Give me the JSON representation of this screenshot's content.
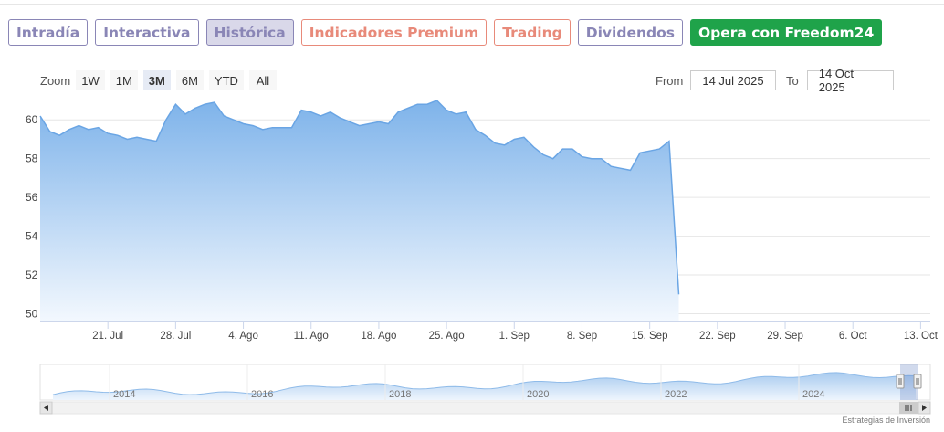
{
  "tabs": [
    {
      "label": "Intradía",
      "style": "purple"
    },
    {
      "label": "Interactiva",
      "style": "purple"
    },
    {
      "label": "Histórica",
      "style": "purple active"
    },
    {
      "label": "Indicadores Premium",
      "style": "salmon"
    },
    {
      "label": "Trading",
      "style": "salmon"
    },
    {
      "label": "Dividendos",
      "style": "purple"
    },
    {
      "label": "Opera con Freedom24",
      "style": "cta"
    }
  ],
  "zoom": {
    "label": "Zoom",
    "buttons": [
      "1W",
      "1M",
      "3M",
      "6M",
      "YTD",
      "All"
    ],
    "selected": "3M"
  },
  "range": {
    "from_label": "From",
    "from_value": "14 Jul 2025",
    "to_label": "To",
    "to_value": "14 Oct 2025"
  },
  "chart_data": {
    "type": "area",
    "ylim": [
      49.6,
      61.0
    ],
    "yticks": [
      50,
      52,
      54,
      56,
      58,
      60
    ],
    "x_start": "2025-07-14",
    "x_end": "2025-10-14",
    "xticks": [
      {
        "date": "2025-07-21",
        "label": "21. Jul"
      },
      {
        "date": "2025-07-28",
        "label": "28. Jul"
      },
      {
        "date": "2025-08-04",
        "label": "4. Ago"
      },
      {
        "date": "2025-08-11",
        "label": "11. Ago"
      },
      {
        "date": "2025-08-18",
        "label": "18. Ago"
      },
      {
        "date": "2025-08-25",
        "label": "25. Ago"
      },
      {
        "date": "2025-09-01",
        "label": "1. Sep"
      },
      {
        "date": "2025-09-08",
        "label": "8. Sep"
      },
      {
        "date": "2025-09-15",
        "label": "15. Sep"
      },
      {
        "date": "2025-09-22",
        "label": "22. Sep"
      },
      {
        "date": "2025-09-29",
        "label": "29. Sep"
      },
      {
        "date": "2025-10-06",
        "label": "6. Oct"
      },
      {
        "date": "2025-10-13",
        "label": "13. Oct"
      }
    ],
    "series": [
      {
        "points": [
          [
            "2025-07-14",
            60.2
          ],
          [
            "2025-07-15",
            59.4
          ],
          [
            "2025-07-16",
            59.2
          ],
          [
            "2025-07-17",
            59.5
          ],
          [
            "2025-07-18",
            59.7
          ],
          [
            "2025-07-19",
            59.5
          ],
          [
            "2025-07-20",
            59.6
          ],
          [
            "2025-07-21",
            59.3
          ],
          [
            "2025-07-22",
            59.2
          ],
          [
            "2025-07-23",
            59.0
          ],
          [
            "2025-07-24",
            59.1
          ],
          [
            "2025-07-25",
            59.0
          ],
          [
            "2025-07-26",
            58.9
          ],
          [
            "2025-07-27",
            60.0
          ],
          [
            "2025-07-28",
            60.8
          ],
          [
            "2025-07-29",
            60.3
          ],
          [
            "2025-07-30",
            60.6
          ],
          [
            "2025-07-31",
            60.8
          ],
          [
            "2025-08-01",
            60.9
          ],
          [
            "2025-08-02",
            60.2
          ],
          [
            "2025-08-03",
            60.0
          ],
          [
            "2025-08-04",
            59.8
          ],
          [
            "2025-08-05",
            59.7
          ],
          [
            "2025-08-06",
            59.5
          ],
          [
            "2025-08-07",
            59.6
          ],
          [
            "2025-08-08",
            59.6
          ],
          [
            "2025-08-09",
            59.6
          ],
          [
            "2025-08-10",
            60.5
          ],
          [
            "2025-08-11",
            60.4
          ],
          [
            "2025-08-12",
            60.2
          ],
          [
            "2025-08-13",
            60.4
          ],
          [
            "2025-08-14",
            60.1
          ],
          [
            "2025-08-15",
            59.9
          ],
          [
            "2025-08-16",
            59.7
          ],
          [
            "2025-08-17",
            59.8
          ],
          [
            "2025-08-18",
            59.9
          ],
          [
            "2025-08-19",
            59.8
          ],
          [
            "2025-08-20",
            60.4
          ],
          [
            "2025-08-21",
            60.6
          ],
          [
            "2025-08-22",
            60.8
          ],
          [
            "2025-08-23",
            60.8
          ],
          [
            "2025-08-24",
            61.0
          ],
          [
            "2025-08-25",
            60.5
          ],
          [
            "2025-08-26",
            60.3
          ],
          [
            "2025-08-27",
            60.4
          ],
          [
            "2025-08-28",
            59.5
          ],
          [
            "2025-08-29",
            59.2
          ],
          [
            "2025-08-30",
            58.8
          ],
          [
            "2025-08-31",
            58.7
          ],
          [
            "2025-09-01",
            59.0
          ],
          [
            "2025-09-02",
            59.1
          ],
          [
            "2025-09-03",
            58.6
          ],
          [
            "2025-09-04",
            58.2
          ],
          [
            "2025-09-05",
            58.0
          ],
          [
            "2025-09-06",
            58.5
          ],
          [
            "2025-09-07",
            58.5
          ],
          [
            "2025-09-08",
            58.1
          ],
          [
            "2025-09-09",
            58.0
          ],
          [
            "2025-09-10",
            58.0
          ],
          [
            "2025-09-11",
            57.6
          ],
          [
            "2025-09-12",
            57.5
          ],
          [
            "2025-09-13",
            57.4
          ],
          [
            "2025-09-14",
            58.3
          ],
          [
            "2025-09-15",
            58.4
          ],
          [
            "2025-09-16",
            58.5
          ],
          [
            "2025-09-17",
            58.9
          ],
          [
            "2025-09-18",
            51.0
          ]
        ]
      }
    ]
  },
  "navigator": {
    "year_labels": [
      "2014",
      "2016",
      "2018",
      "2020",
      "2022",
      "2024"
    ]
  },
  "credit": "Estrategias de Inversión",
  "colors": {
    "area_top": "#7eb3ea",
    "area_bottom": "#f3f8fe",
    "line": "#6aa5e4",
    "grid": "#e6e6e6"
  }
}
